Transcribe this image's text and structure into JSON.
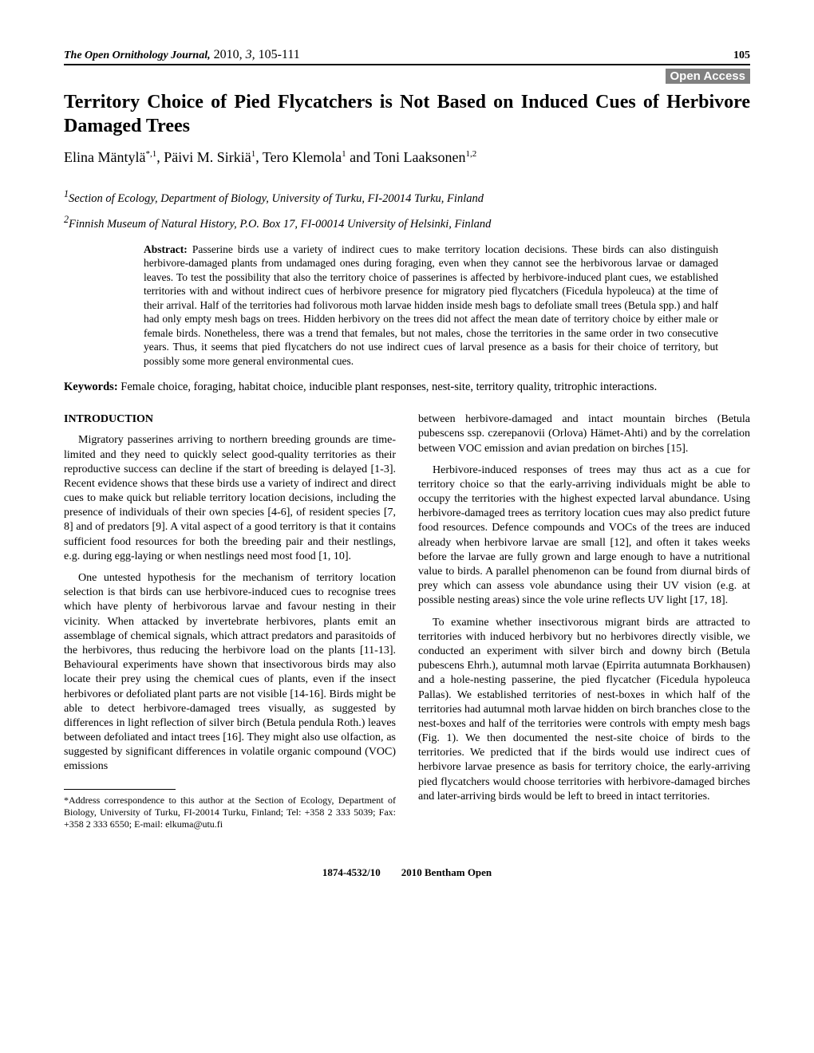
{
  "header": {
    "journal": "The Open Ornithology Journal,",
    "year": "2010,",
    "volume": "3,",
    "pages": "105-111",
    "page_number": "105"
  },
  "open_access": "Open Access",
  "title": "Territory Choice of Pied Flycatchers is Not Based on Induced Cues of Herbivore Damaged Trees",
  "authors_html": "Elina Mäntylä<sup>*,1</sup>, Päivi M. Sirkiä<sup>1</sup>, Tero Klemola<sup>1</sup> and Toni Laaksonen<sup>1,2</sup>",
  "affiliations": [
    {
      "sup": "1",
      "text": "Section of Ecology, Department of Biology, University of Turku, FI-20014 Turku, Finland"
    },
    {
      "sup": "2",
      "text": "Finnish Museum of Natural History, P.O. Box 17, FI-00014 University of Helsinki, Finland"
    }
  ],
  "abstract": {
    "label": "Abstract:",
    "text": "Passerine birds use a variety of indirect cues to make territory location decisions. These birds can also distinguish herbivore-damaged plants from undamaged ones during foraging, even when they cannot see the herbivorous larvae or damaged leaves. To test the possibility that also the territory choice of passerines is affected by herbivore-induced plant cues, we established territories with and without indirect cues of herbivore presence for migratory pied flycatchers (Ficedula hypoleuca) at the time of their arrival. Half of the territories had folivorous moth larvae hidden inside mesh bags to defoliate small trees (Betula spp.) and half had only empty mesh bags on trees. Hidden herbivory on the trees did not affect the mean date of territory choice by either male or female birds. Nonetheless, there was a trend that females, but not males, chose the territories in the same order in two consecutive years. Thus, it seems that pied flycatchers do not use indirect cues of larval presence as a basis for their choice of territory, but possibly some more general environmental cues."
  },
  "keywords": {
    "label": "Keywords:",
    "text": "Female choice, foraging, habitat choice, inducible plant responses, nest-site, territory quality, tritrophic interactions."
  },
  "left_column": {
    "heading": "INTRODUCTION",
    "p1": "Migratory passerines arriving to northern breeding grounds are time-limited and they need to quickly select good-quality territories as their reproductive success can decline if the start of breeding is delayed [1-3]. Recent evidence shows that these birds use a variety of indirect and direct cues to make quick but reliable territory location decisions, including the presence of individuals of their own species [4-6], of resident species [7, 8] and of predators [9]. A vital aspect of a good territory is that it contains sufficient food resources for both the breeding pair and their nestlings, e.g. during egg-laying or when nestlings need most food [1, 10].",
    "p2": "One untested hypothesis for the mechanism of territory location selection is that birds can use herbivore-induced cues to recognise trees which have plenty of herbivorous larvae and favour nesting in their vicinity. When attacked by invertebrate herbivores, plants emit an assemblage of chemical signals, which attract predators and parasitoids of the herbivores, thus reducing the herbivore load on the plants [11-13]. Behavioural experiments have shown that insectivorous birds may also locate their prey using the chemical cues of plants, even if the insect herbivores or defoliated plant parts are not visible [14-16]. Birds might be able to detect herbivore-damaged trees visually, as suggested by differences in light reflection of silver birch (Betula pendula Roth.) leaves between defoliated and intact trees [16]. They might also use olfaction, as suggested by significant differences in volatile organic compound (VOC) emissions"
  },
  "footnote": "*Address correspondence to this author at the Section of Ecology, Department of Biology, University of Turku, FI-20014 Turku, Finland; Tel: +358 2 333 5039; Fax: +358 2 333 6550; E-mail: elkuma@utu.fi",
  "right_column": {
    "p1": "between herbivore-damaged and intact mountain birches (Betula pubescens ssp. czerepanovii (Orlova) Hämet-Ahti) and by the correlation between VOC emission and avian predation on birches [15].",
    "p2": "Herbivore-induced responses of trees may thus act as a cue for territory choice so that the early-arriving individuals might be able to occupy the territories with the highest expected larval abundance. Using herbivore-damaged trees as territory location cues may also predict future food resources. Defence compounds and VOCs of the trees are induced already when herbivore larvae are small [12], and often it takes weeks before the larvae are fully grown and large enough to have a nutritional value to birds. A parallel phenomenon can be found from diurnal birds of prey which can assess vole abundance using their UV vision (e.g. at possible nesting areas) since the vole urine reflects UV light [17, 18].",
    "p3": "To examine whether insectivorous migrant birds are attracted to territories with induced herbivory but no herbivores directly visible, we conducted an experiment with silver birch and downy birch (Betula pubescens Ehrh.), autumnal moth larvae (Epirrita autumnata Borkhausen) and a hole-nesting passerine, the pied flycatcher (Ficedula hypoleuca Pallas). We established territories of nest-boxes in which half of the territories had autumnal moth larvae hidden on birch branches close to the nest-boxes and half of the territories were controls with empty mesh bags (Fig. 1). We then documented the nest-site choice of birds to the territories. We predicted that if the birds would use indirect cues of herbivore larvae presence as basis for territory choice, the early-arriving pied flycatchers would choose territories with herbivore-damaged birches and later-arriving birds would be left to breed in intact territories."
  },
  "footer": {
    "issn": "1874-4532/10",
    "copyright": "2010 Bentham Open"
  }
}
